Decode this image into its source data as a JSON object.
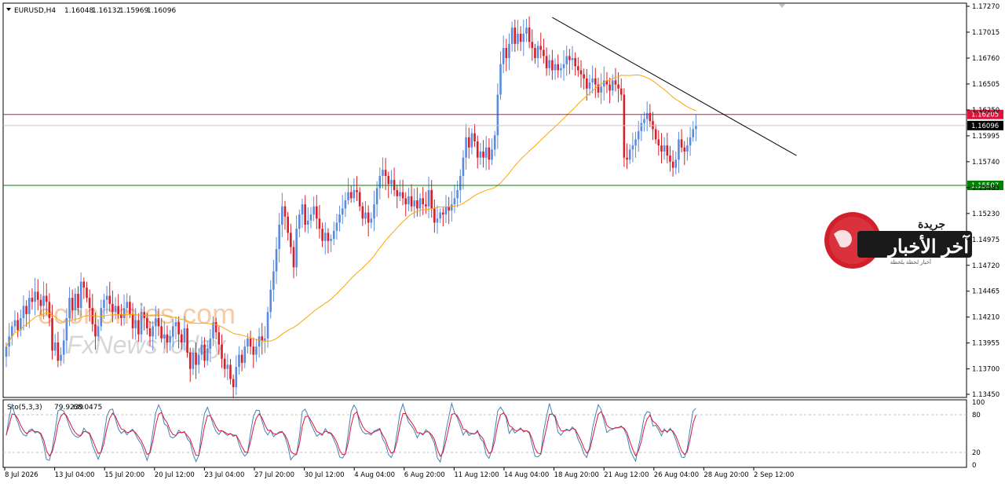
{
  "chart_data": [
    {
      "type": "candlestick",
      "header": {
        "symbol_label": "EURUSD,H4",
        "open": "1.16048",
        "high": "1.16132",
        "low": "1.15969",
        "close": "1.16096"
      },
      "y_ticks": [
        "1.17270",
        "1.17015",
        "1.16760",
        "1.16505",
        "1.16250",
        "1.15995",
        "1.15740",
        "1.15485",
        "1.15230",
        "1.14975",
        "1.14720",
        "1.14465",
        "1.14210",
        "1.13955",
        "1.13700",
        "1.13450"
      ],
      "ylim": [
        1.1345,
        1.1727
      ],
      "x_ticks": [
        "8 Jul 2026",
        "13 Jul 04:00",
        "15 Jul 20:00",
        "20 Jul 12:00",
        "23 Jul 04:00",
        "27 Jul 20:00",
        "30 Jul 12:00",
        "4 Aug 04:00",
        "6 Aug 20:00",
        "11 Aug 12:00",
        "14 Aug 04:00",
        "18 Aug 20:00",
        "21 Aug 12:00",
        "26 Aug 04:00",
        "28 Aug 20:00",
        "2 Sep 12:00"
      ],
      "price_levels": [
        {
          "label": "1.16205",
          "value": 1.16205,
          "color": "#dc143c"
        },
        {
          "label": "1.16096",
          "value": 1.16096,
          "color": "#000000"
        },
        {
          "label": "1.15507",
          "value": 1.15507,
          "color": "#008000"
        }
      ],
      "trendline": {
        "start": {
          "bar": 190,
          "price": 1.1716
        },
        "end": {
          "bar": 275,
          "price": 1.158
        }
      },
      "moving_average_color": "#ffa500",
      "bull_color": "#5b8bdf",
      "bear_color": "#d81e28",
      "closes": [
        1.1392,
        1.1402,
        1.1412,
        1.1418,
        1.1408,
        1.142,
        1.1432,
        1.1424,
        1.144,
        1.1436,
        1.1446,
        1.1438,
        1.1432,
        1.1442,
        1.1436,
        1.142,
        1.1388,
        1.1396,
        1.1378,
        1.1384,
        1.1398,
        1.142,
        1.144,
        1.1428,
        1.1444,
        1.143,
        1.1456,
        1.145,
        1.144,
        1.143,
        1.1414,
        1.1402,
        1.1412,
        1.143,
        1.1438,
        1.1442,
        1.1434,
        1.1426,
        1.1432,
        1.1424,
        1.142,
        1.143,
        1.1436,
        1.1424,
        1.141,
        1.1418,
        1.1404,
        1.1426,
        1.142,
        1.141,
        1.1402,
        1.1412,
        1.142,
        1.1412,
        1.14,
        1.1404,
        1.1396,
        1.1402,
        1.1412,
        1.1416,
        1.1404,
        1.1396,
        1.141,
        1.1386,
        1.137,
        1.1386,
        1.1374,
        1.1384,
        1.1394,
        1.1378,
        1.139,
        1.14,
        1.1416,
        1.1406,
        1.1394,
        1.138,
        1.137,
        1.1374,
        1.136,
        1.1352,
        1.1372,
        1.1384,
        1.1376,
        1.1392,
        1.14,
        1.1392,
        1.1384,
        1.1392,
        1.1402,
        1.1398,
        1.14,
        1.1426,
        1.1448,
        1.1466,
        1.1488,
        1.1512,
        1.153,
        1.152,
        1.1504,
        1.149,
        1.147,
        1.1508,
        1.1522,
        1.1532,
        1.1512,
        1.1516,
        1.1522,
        1.153,
        1.1518,
        1.1508,
        1.1496,
        1.1504,
        1.1496,
        1.1498,
        1.1506,
        1.1514,
        1.1522,
        1.1528,
        1.1536,
        1.1544,
        1.1538,
        1.1546,
        1.1544,
        1.153,
        1.1518,
        1.1524,
        1.1514,
        1.1518,
        1.1532,
        1.1548,
        1.156,
        1.1566,
        1.156,
        1.1552,
        1.1556,
        1.1546,
        1.154,
        1.1544,
        1.1538,
        1.1532,
        1.154,
        1.153,
        1.1536,
        1.1528,
        1.1538,
        1.1532,
        1.153,
        1.1546,
        1.1528,
        1.1514,
        1.1518,
        1.1524,
        1.1522,
        1.153,
        1.1526,
        1.1532,
        1.1538,
        1.1546,
        1.156,
        1.1578,
        1.1598,
        1.1588,
        1.1602,
        1.1594,
        1.1578,
        1.1584,
        1.1578,
        1.1588,
        1.1576,
        1.1586,
        1.16,
        1.164,
        1.167,
        1.1686,
        1.1676,
        1.169,
        1.1706,
        1.169,
        1.17,
        1.1692,
        1.17,
        1.1706,
        1.1692,
        1.1686,
        1.1676,
        1.1688,
        1.1684,
        1.1678,
        1.1666,
        1.1674,
        1.1664,
        1.167,
        1.1664,
        1.1666,
        1.167,
        1.1678,
        1.1674,
        1.1676,
        1.1668,
        1.1664,
        1.166,
        1.1656,
        1.1646,
        1.1652,
        1.1656,
        1.165,
        1.1642,
        1.1648,
        1.1654,
        1.165,
        1.1644,
        1.1654,
        1.165,
        1.1646,
        1.164,
        1.1578,
        1.1576,
        1.1586,
        1.159,
        1.1596,
        1.1604,
        1.1612,
        1.1616,
        1.1622,
        1.1614,
        1.1606,
        1.1596,
        1.159,
        1.1584,
        1.159,
        1.158,
        1.1574,
        1.1568,
        1.1576,
        1.1596,
        1.1588,
        1.1584,
        1.159,
        1.1598,
        1.1606,
        1.161
      ]
    },
    {
      "type": "line",
      "header": {
        "name": "Sto(5,3,3)",
        "main": "79.9239",
        "signal": "68.0475"
      },
      "y_ticks": [
        "100",
        "80",
        "20",
        "0"
      ],
      "ylim": [
        0,
        100
      ],
      "levels": [
        80,
        20
      ],
      "series": [
        {
          "values_pattern_period": 17,
          "color": "#4682b4"
        },
        {
          "values_pattern_period": 17,
          "color": "#dc143c"
        }
      ]
    }
  ],
  "watermark": {
    "logo_small_text": "جريدة",
    "logo_big_text": "آخر الأخبار",
    "logo_tagline": "أخبار لحظة بلحظة",
    "site_text_1": "economies.com",
    "site_text_2": "FxNewsToday"
  },
  "colors": {
    "background": "#ffffff",
    "grid_dash": "#c0c0c0",
    "axis": "#000000"
  }
}
